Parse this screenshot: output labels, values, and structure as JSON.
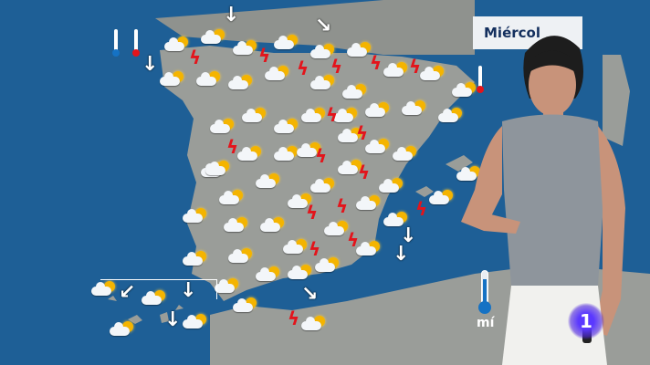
{
  "broadcast": {
    "day_label": "Miércol",
    "thermometer_unit": "mí",
    "channel_logo": "1"
  },
  "colors": {
    "sea": "#1e5f96",
    "land": "#9a9d99",
    "lightning": "#e3141b",
    "sun": "#f4b400",
    "label_text": "#14305e",
    "logo": "#5a38ff"
  },
  "map": {
    "region": "Spain",
    "icon_types": [
      "sun-cloud-icon",
      "cloud-icon",
      "rain-cloud-icon",
      "lightning-icon",
      "wind-arrow-icon",
      "thermometer-up-icon",
      "thermometer-down-icon"
    ]
  }
}
